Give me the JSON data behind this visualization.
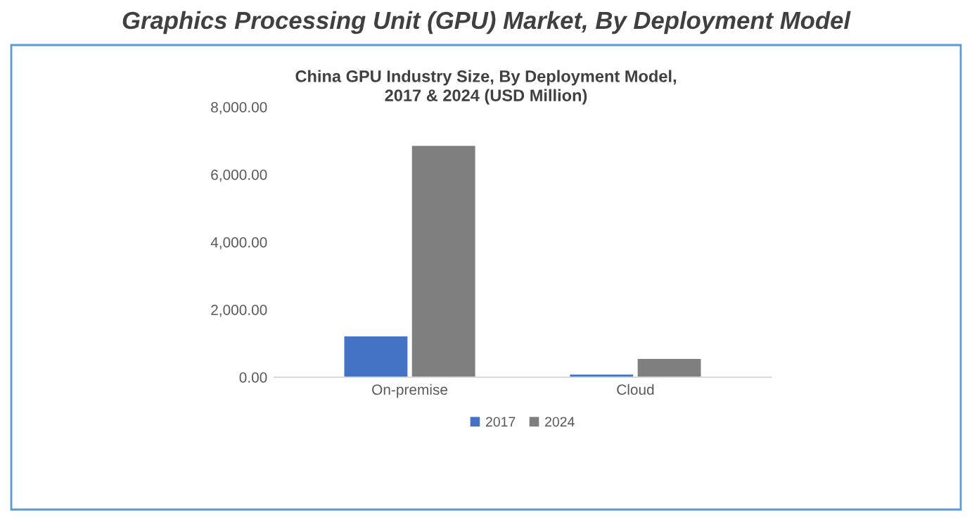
{
  "chart_data": {
    "type": "bar",
    "title": "Graphics Processing Unit (GPU) Market, By Deployment Model",
    "subtitle": "China GPU Industry Size, By Deployment Model,\n2017 & 2024 (USD Million)",
    "categories": [
      "On-premise",
      "Cloud"
    ],
    "series": [
      {
        "name": "2017",
        "color": "#4472c4",
        "values": [
          1210,
          80
        ]
      },
      {
        "name": "2024",
        "color": "#7f7f7f",
        "values": [
          6850,
          540
        ]
      }
    ],
    "ylim": [
      0,
      8000
    ],
    "yticks": [
      {
        "value": 0,
        "label": "0.00"
      },
      {
        "value": 2000,
        "label": "2,000.00"
      },
      {
        "value": 4000,
        "label": "4,000.00"
      },
      {
        "value": 6000,
        "label": "6,000.00"
      },
      {
        "value": 8000,
        "label": "8,000.00"
      }
    ],
    "grid": false,
    "legend": "bottom"
  }
}
